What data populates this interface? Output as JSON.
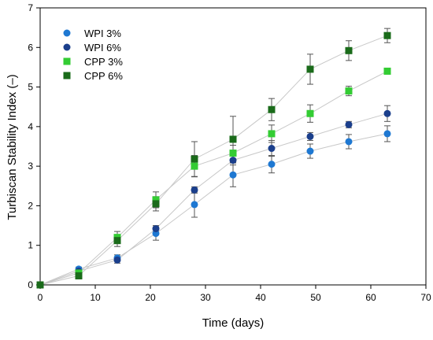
{
  "chart_data": {
    "type": "scatter",
    "title": "",
    "xlabel": "Time (days)",
    "ylabel": "Turbiscan Stability Index (–)",
    "xlim": [
      0,
      70
    ],
    "ylim": [
      0,
      7
    ],
    "xticks": [
      0,
      10,
      20,
      30,
      40,
      50,
      60,
      70
    ],
    "yticks": [
      0,
      1,
      2,
      3,
      4,
      5,
      6,
      7
    ],
    "grid": false,
    "legend_position": "top-left",
    "x": [
      0,
      7,
      14,
      21,
      28,
      35,
      42,
      49,
      56,
      63
    ],
    "series": [
      {
        "name": "WPI 3%",
        "marker": "circle",
        "color": "#1e78d2",
        "values": [
          0.0,
          0.4,
          0.68,
          1.3,
          2.03,
          2.78,
          3.05,
          3.38,
          3.62,
          3.82
        ],
        "errors": [
          0.0,
          0.05,
          0.08,
          0.17,
          0.32,
          0.3,
          0.22,
          0.18,
          0.18,
          0.2
        ]
      },
      {
        "name": "WPI 6%",
        "marker": "circle",
        "color": "#1b3f8c",
        "values": [
          0.0,
          0.35,
          0.63,
          1.42,
          2.4,
          3.15,
          3.45,
          3.75,
          4.05,
          4.33
        ],
        "errors": [
          0.0,
          0.05,
          0.08,
          0.08,
          0.08,
          0.12,
          0.2,
          0.1,
          0.08,
          0.2
        ]
      },
      {
        "name": "CPP 3%",
        "marker": "square",
        "color": "#33cc33",
        "values": [
          0.0,
          0.3,
          1.2,
          2.15,
          3.0,
          3.33,
          3.82,
          4.33,
          4.9,
          5.4
        ],
        "errors": [
          0.0,
          0.05,
          0.15,
          0.2,
          0.27,
          0.2,
          0.22,
          0.22,
          0.12,
          0.06
        ]
      },
      {
        "name": "CPP 6%",
        "marker": "square",
        "color": "#1a6b1a",
        "values": [
          0.0,
          0.23,
          1.12,
          2.05,
          3.18,
          3.68,
          4.43,
          5.45,
          5.92,
          6.3
        ],
        "errors": [
          0.0,
          0.08,
          0.15,
          0.18,
          0.44,
          0.58,
          0.28,
          0.38,
          0.25,
          0.18
        ]
      }
    ]
  }
}
